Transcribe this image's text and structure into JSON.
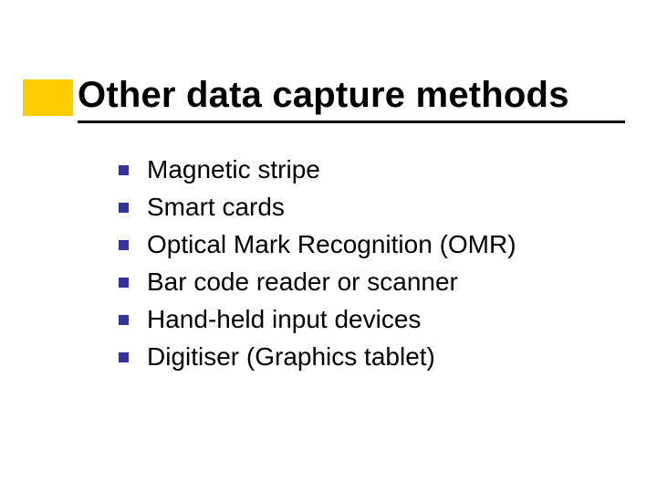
{
  "slide": {
    "title": "Other data capture methods",
    "title_fontsize": 40,
    "title_color": "#000000",
    "underline_color": "#000000",
    "accent_color": "#ffcc00",
    "bullet_color": "#333399",
    "body_fontsize": 28,
    "background_color": "#ffffff",
    "items": [
      {
        "label": "Magnetic stripe"
      },
      {
        "label": "Smart cards"
      },
      {
        "label": "Optical Mark Recognition (OMR)"
      },
      {
        "label": "Bar code reader or scanner"
      },
      {
        "label": "Hand-held input devices"
      },
      {
        "label": "Digitiser (Graphics tablet)"
      }
    ]
  }
}
